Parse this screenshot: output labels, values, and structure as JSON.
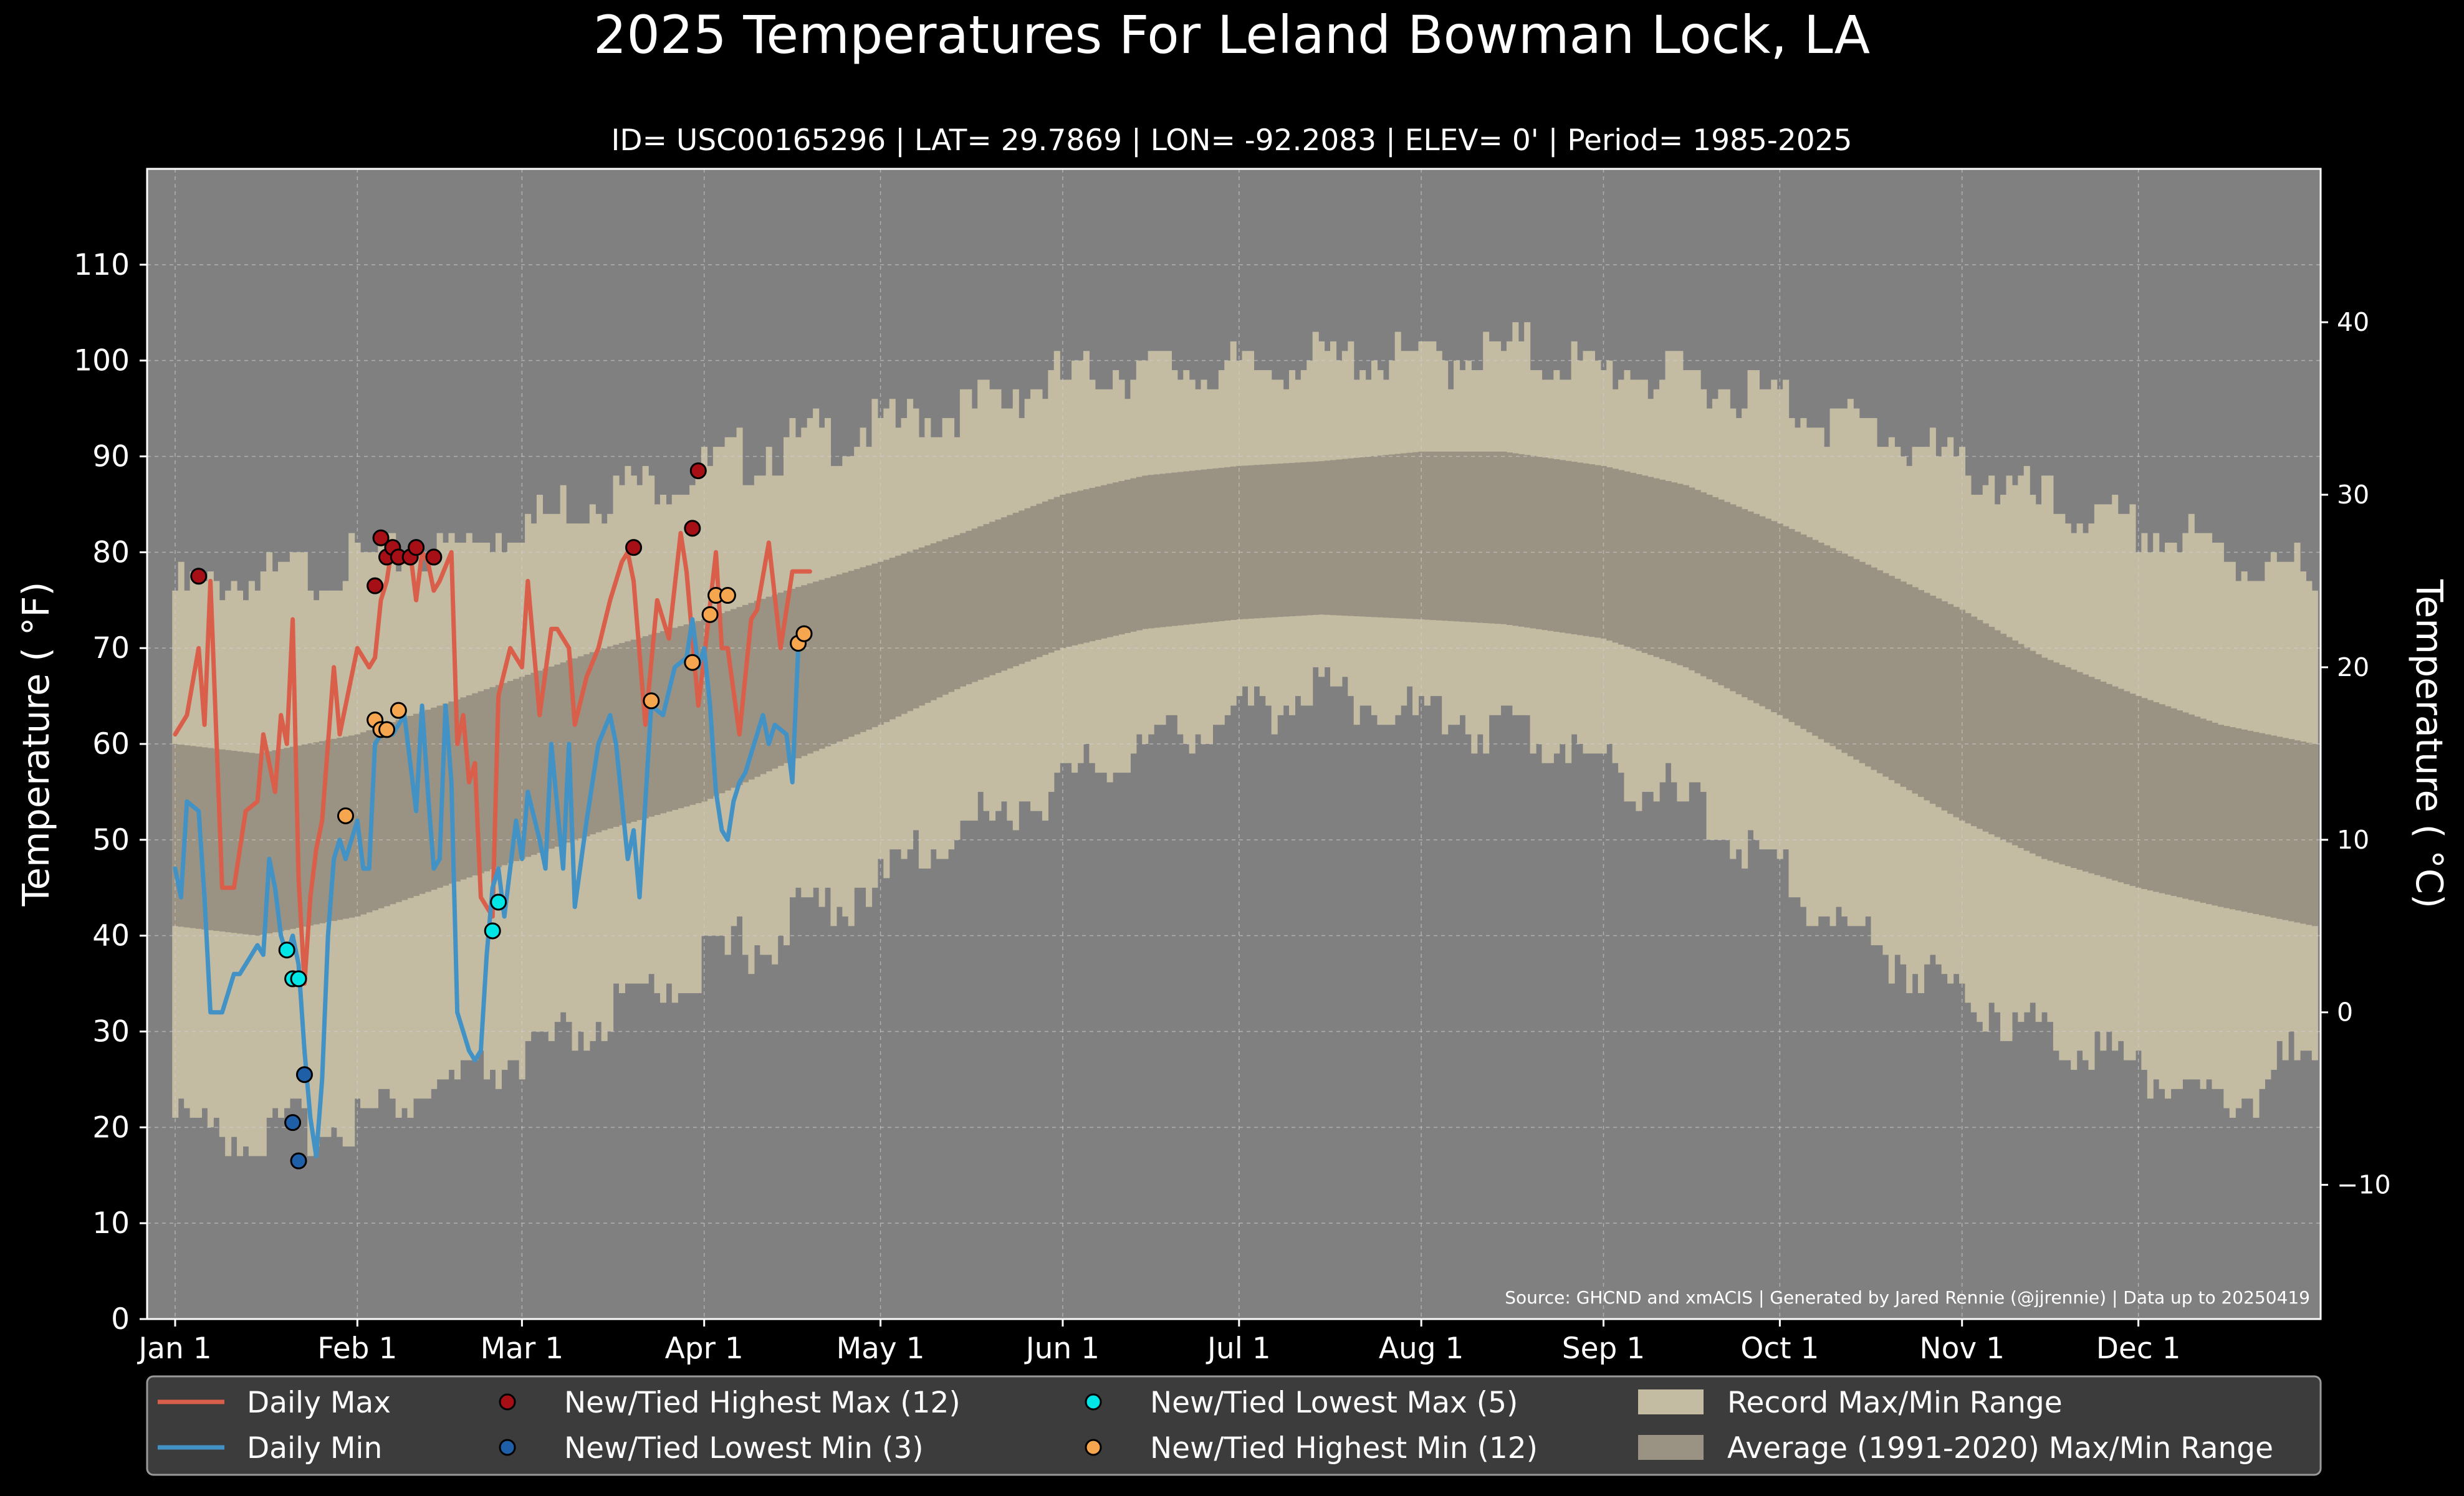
{
  "title": "2025 Temperatures For Leland Bowman Lock, LA",
  "subtitle": "ID= USC00165296 | LAT= 29.7869 | LON= -92.2083 | ELEV= 0' | Period= 1985-2025",
  "source": "Source: GHCND and xmACIS | Generated by Jared Rennie (@jjrennie) | Data up to 20250419",
  "colors": {
    "background": "#000000",
    "plot": "#808080",
    "record_range": "#c4bba3",
    "normal_range": "#9a9282",
    "daily_max": "#d95f4b",
    "daily_min": "#4292c6",
    "new_high_max": "#a50f15",
    "new_low_min": "#1f5fa8",
    "new_low_max": "#00e5e5",
    "new_high_min": "#f7a650"
  },
  "legend": {
    "items": [
      {
        "label": "Daily Max",
        "kind": "line",
        "color": "#d95f4b"
      },
      {
        "label": "Daily Min",
        "kind": "line",
        "color": "#4292c6"
      },
      {
        "label": "New/Tied Highest Max (12)",
        "kind": "dot",
        "color": "#a50f15"
      },
      {
        "label": "New/Tied Lowest Min (3)",
        "kind": "dot",
        "color": "#1f5fa8"
      },
      {
        "label": "New/Tied Lowest Max (5)",
        "kind": "dot",
        "color": "#00e5e5"
      },
      {
        "label": "New/Tied Highest Min (12)",
        "kind": "dot",
        "color": "#f7a650"
      },
      {
        "label": "Record Max/Min Range",
        "kind": "patch",
        "color": "#c4bba3"
      },
      {
        "label": "Average (1991-2020) Max/Min Range",
        "kind": "patch",
        "color": "#9a9282"
      }
    ]
  },
  "chart_data": {
    "type": "line",
    "xlabel": "",
    "ylabel": "Temperature ( °F)",
    "ylabel_right": "Temperature ( °C)",
    "xlim": [
      "2025-01-01",
      "2025-12-31"
    ],
    "ylim": [
      0,
      120
    ],
    "grid": true,
    "legend_position": "bottom",
    "x_ticks": [
      {
        "date": "2025-01-01",
        "label": "Jan 1"
      },
      {
        "date": "2025-02-01",
        "label": "Feb 1"
      },
      {
        "date": "2025-03-01",
        "label": "Mar 1"
      },
      {
        "date": "2025-04-01",
        "label": "Apr 1"
      },
      {
        "date": "2025-05-01",
        "label": "May 1"
      },
      {
        "date": "2025-06-01",
        "label": "Jun 1"
      },
      {
        "date": "2025-07-01",
        "label": "Jul 1"
      },
      {
        "date": "2025-08-01",
        "label": "Aug 1"
      },
      {
        "date": "2025-09-01",
        "label": "Sep 1"
      },
      {
        "date": "2025-10-01",
        "label": "Oct 1"
      },
      {
        "date": "2025-11-01",
        "label": "Nov 1"
      },
      {
        "date": "2025-12-01",
        "label": "Dec 1"
      }
    ],
    "y_ticks": [
      0,
      10,
      20,
      30,
      40,
      50,
      60,
      70,
      80,
      90,
      100,
      110
    ],
    "y_ticks_right": [
      -10,
      0,
      10,
      20,
      30,
      40
    ],
    "record_max_anchors": {
      "date": [
        "2025-01-01",
        "2025-01-15",
        "2025-02-01",
        "2025-02-15",
        "2025-03-01",
        "2025-03-15",
        "2025-04-01",
        "2025-04-15",
        "2025-05-01",
        "2025-05-15",
        "2025-06-01",
        "2025-06-15",
        "2025-07-01",
        "2025-07-15",
        "2025-08-01",
        "2025-08-15",
        "2025-09-01",
        "2025-09-15",
        "2025-10-01",
        "2025-10-15",
        "2025-11-01",
        "2025-11-15",
        "2025-12-01",
        "2025-12-15",
        "2025-12-31"
      ],
      "value": [
        76,
        77,
        79,
        80,
        83,
        86,
        89,
        91,
        93,
        95,
        98,
        99,
        99,
        100,
        100,
        101,
        99,
        98,
        96,
        93,
        89,
        85,
        82,
        80,
        77
      ]
    },
    "record_min_anchors": {
      "date": [
        "2025-01-01",
        "2025-01-15",
        "2025-02-01",
        "2025-02-15",
        "2025-03-01",
        "2025-03-15",
        "2025-04-01",
        "2025-04-15",
        "2025-05-01",
        "2025-05-15",
        "2025-06-01",
        "2025-06-15",
        "2025-07-01",
        "2025-07-15",
        "2025-08-01",
        "2025-08-15",
        "2025-09-01",
        "2025-09-15",
        "2025-10-01",
        "2025-10-15",
        "2025-11-01",
        "2025-11-15",
        "2025-12-01",
        "2025-12-15",
        "2025-12-31"
      ],
      "value": [
        21,
        19,
        21,
        24,
        27,
        31,
        37,
        41,
        46,
        51,
        56,
        60,
        63,
        66,
        63,
        62,
        58,
        54,
        46,
        40,
        34,
        30,
        27,
        22,
        28
      ]
    },
    "normal_max_anchors": {
      "date": [
        "2025-01-01",
        "2025-01-15",
        "2025-02-01",
        "2025-02-15",
        "2025-03-01",
        "2025-03-15",
        "2025-04-01",
        "2025-04-15",
        "2025-05-01",
        "2025-05-15",
        "2025-06-01",
        "2025-06-15",
        "2025-07-01",
        "2025-07-15",
        "2025-08-01",
        "2025-08-15",
        "2025-09-01",
        "2025-09-15",
        "2025-10-01",
        "2025-10-15",
        "2025-11-01",
        "2025-11-15",
        "2025-12-01",
        "2025-12-15",
        "2025-12-31"
      ],
      "value": [
        60,
        59,
        61,
        64,
        67,
        70,
        73,
        76,
        79,
        82,
        86,
        88,
        89,
        89.5,
        90.5,
        90.5,
        89,
        87,
        83,
        79,
        74,
        69,
        65,
        62,
        60
      ]
    },
    "normal_min_anchors": {
      "date": [
        "2025-01-01",
        "2025-01-15",
        "2025-02-01",
        "2025-02-15",
        "2025-03-01",
        "2025-03-15",
        "2025-04-01",
        "2025-04-15",
        "2025-05-01",
        "2025-05-15",
        "2025-06-01",
        "2025-06-15",
        "2025-07-01",
        "2025-07-15",
        "2025-08-01",
        "2025-08-15",
        "2025-09-01",
        "2025-09-15",
        "2025-10-01",
        "2025-10-15",
        "2025-11-01",
        "2025-11-15",
        "2025-12-01",
        "2025-12-15",
        "2025-12-31"
      ],
      "value": [
        41,
        40,
        42,
        45,
        48,
        51,
        54,
        58,
        62,
        66,
        70,
        72,
        73,
        73.5,
        73,
        72.5,
        71,
        68,
        63,
        58,
        52,
        48,
        45,
        43,
        41
      ]
    },
    "series": [
      {
        "name": "Daily Max",
        "x": [
          "2025-01-01",
          "2025-01-03",
          "2025-01-05",
          "2025-01-06",
          "2025-01-07",
          "2025-01-09",
          "2025-01-11",
          "2025-01-13",
          "2025-01-15",
          "2025-01-16",
          "2025-01-18",
          "2025-01-19",
          "2025-01-20",
          "2025-01-21",
          "2025-01-22",
          "2025-01-23",
          "2025-01-24",
          "2025-01-25",
          "2025-01-26",
          "2025-01-28",
          "2025-01-29",
          "2025-02-01",
          "2025-02-03",
          "2025-02-04",
          "2025-02-05",
          "2025-02-06",
          "2025-02-07",
          "2025-02-08",
          "2025-02-09",
          "2025-02-10",
          "2025-02-11",
          "2025-02-12",
          "2025-02-13",
          "2025-02-14",
          "2025-02-15",
          "2025-02-17",
          "2025-02-18",
          "2025-02-19",
          "2025-02-20",
          "2025-02-21",
          "2025-02-22",
          "2025-02-24",
          "2025-02-25",
          "2025-02-27",
          "2025-03-01",
          "2025-03-02",
          "2025-03-04",
          "2025-03-06",
          "2025-03-07",
          "2025-03-09",
          "2025-03-10",
          "2025-03-12",
          "2025-03-14",
          "2025-03-16",
          "2025-03-18",
          "2025-03-19",
          "2025-03-20",
          "2025-03-22",
          "2025-03-24",
          "2025-03-26",
          "2025-03-28",
          "2025-03-29",
          "2025-03-30",
          "2025-03-31",
          "2025-04-01",
          "2025-04-03",
          "2025-04-04",
          "2025-04-05",
          "2025-04-07",
          "2025-04-09",
          "2025-04-10",
          "2025-04-12",
          "2025-04-14",
          "2025-04-16",
          "2025-04-17",
          "2025-04-19"
        ],
        "y": [
          61,
          63,
          70,
          62,
          77,
          45,
          45,
          53,
          54,
          61,
          55,
          63,
          60,
          73,
          46,
          35,
          44,
          49,
          52,
          68,
          61,
          70,
          68,
          69,
          75,
          77,
          81,
          80,
          79,
          80,
          75,
          80,
          79,
          76,
          77,
          80,
          60,
          63,
          56,
          58,
          44,
          42,
          65,
          70,
          68,
          77,
          63,
          72,
          72,
          70,
          62,
          67,
          70,
          75,
          79,
          80,
          77,
          62,
          75,
          71,
          82,
          78,
          71,
          64,
          69,
          80,
          70,
          70,
          61,
          73,
          74,
          81,
          70,
          78,
          78,
          78
        ]
      },
      {
        "name": "Daily Min",
        "x": [
          "2025-01-01",
          "2025-01-02",
          "2025-01-03",
          "2025-01-05",
          "2025-01-06",
          "2025-01-07",
          "2025-01-08",
          "2025-01-09",
          "2025-01-10",
          "2025-01-11",
          "2025-01-12",
          "2025-01-13",
          "2025-01-15",
          "2025-01-16",
          "2025-01-17",
          "2025-01-18",
          "2025-01-19",
          "2025-01-20",
          "2025-01-21",
          "2025-01-22",
          "2025-01-23",
          "2025-01-24",
          "2025-01-25",
          "2025-01-26",
          "2025-01-27",
          "2025-01-28",
          "2025-01-29",
          "2025-01-30",
          "2025-01-31",
          "2025-02-01",
          "2025-02-02",
          "2025-02-03",
          "2025-02-04",
          "2025-02-05",
          "2025-02-06",
          "2025-02-07",
          "2025-02-08",
          "2025-02-09",
          "2025-02-10",
          "2025-02-11",
          "2025-02-12",
          "2025-02-13",
          "2025-02-14",
          "2025-02-15",
          "2025-02-16",
          "2025-02-17",
          "2025-02-18",
          "2025-02-19",
          "2025-02-20",
          "2025-02-21",
          "2025-02-22",
          "2025-02-23",
          "2025-02-24",
          "2025-02-25",
          "2025-02-26",
          "2025-02-27",
          "2025-02-28",
          "2025-03-01",
          "2025-03-02",
          "2025-03-04",
          "2025-03-05",
          "2025-03-06",
          "2025-03-08",
          "2025-03-09",
          "2025-03-10",
          "2025-03-12",
          "2025-03-14",
          "2025-03-16",
          "2025-03-17",
          "2025-03-19",
          "2025-03-20",
          "2025-03-21",
          "2025-03-23",
          "2025-03-25",
          "2025-03-27",
          "2025-03-29",
          "2025-03-30",
          "2025-03-31",
          "2025-04-01",
          "2025-04-02",
          "2025-04-03",
          "2025-04-04",
          "2025-04-05",
          "2025-04-06",
          "2025-04-07",
          "2025-04-08",
          "2025-04-09",
          "2025-04-11",
          "2025-04-12",
          "2025-04-13",
          "2025-04-15",
          "2025-04-16",
          "2025-04-17"
        ],
        "y": [
          47,
          44,
          54,
          53,
          44,
          32,
          32,
          32,
          34,
          36,
          36,
          37,
          39,
          38,
          48,
          45,
          40,
          38,
          40,
          37,
          28,
          21,
          17,
          25,
          40,
          48,
          50,
          48,
          50,
          52,
          47,
          47,
          60,
          61,
          61,
          61,
          62,
          63,
          58,
          53,
          64,
          55,
          47,
          48,
          64,
          56,
          32,
          30,
          28,
          27,
          28,
          38,
          45,
          47,
          42,
          47,
          52,
          48,
          55,
          50,
          47,
          60,
          47,
          60,
          43,
          52,
          60,
          63,
          60,
          48,
          51,
          44,
          64,
          63,
          68,
          69,
          73,
          68,
          70,
          64,
          55,
          51,
          50,
          54,
          56,
          57,
          59,
          63,
          60,
          62,
          61,
          56,
          70
        ]
      }
    ],
    "markers": [
      {
        "name": "New/Tied Highest Max (12)",
        "x": [
          "2025-01-05",
          "2025-02-04",
          "2025-02-05",
          "2025-02-06",
          "2025-02-07",
          "2025-02-08",
          "2025-02-10",
          "2025-02-11",
          "2025-02-14",
          "2025-03-20",
          "2025-03-30",
          "2025-03-31"
        ],
        "y": [
          77.5,
          76.5,
          81.5,
          79.5,
          80.5,
          79.5,
          79.5,
          80.5,
          79.5,
          80.5,
          82.5,
          88.5
        ]
      },
      {
        "name": "New/Tied Lowest Min (3)",
        "x": [
          "2025-01-21",
          "2025-01-22",
          "2025-01-23"
        ],
        "y": [
          20.5,
          16.5,
          25.5
        ]
      },
      {
        "name": "New/Tied Lowest Max (5)",
        "x": [
          "2025-01-20",
          "2025-01-21",
          "2025-01-22",
          "2025-02-24",
          "2025-02-25"
        ],
        "y": [
          38.5,
          35.5,
          35.5,
          40.5,
          43.5
        ]
      },
      {
        "name": "New/Tied Highest Min (12)",
        "x": [
          "2025-01-30",
          "2025-02-04",
          "2025-02-05",
          "2025-02-06",
          "2025-02-08",
          "2025-03-23",
          "2025-03-30",
          "2025-04-02",
          "2025-04-03",
          "2025-04-05",
          "2025-04-17",
          "2025-04-18"
        ],
        "y": [
          52.5,
          62.5,
          61.5,
          61.5,
          63.5,
          64.5,
          68.5,
          73.5,
          75.5,
          75.5,
          70.5,
          71.5
        ]
      }
    ]
  }
}
